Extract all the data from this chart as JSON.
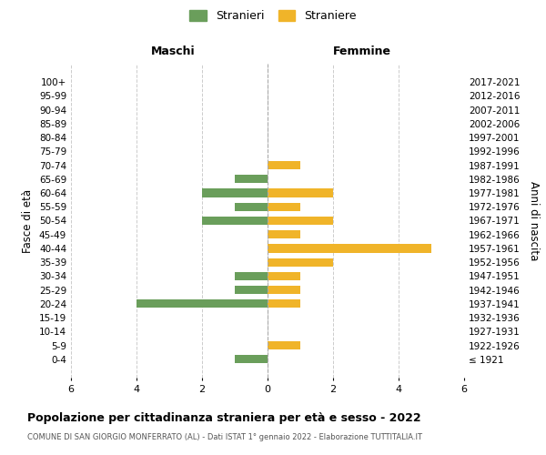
{
  "age_groups": [
    "100+",
    "95-99",
    "90-94",
    "85-89",
    "80-84",
    "75-79",
    "70-74",
    "65-69",
    "60-64",
    "55-59",
    "50-54",
    "45-49",
    "40-44",
    "35-39",
    "30-34",
    "25-29",
    "20-24",
    "15-19",
    "10-14",
    "5-9",
    "0-4"
  ],
  "birth_years": [
    "≤ 1921",
    "1922-1926",
    "1927-1931",
    "1932-1936",
    "1937-1941",
    "1942-1946",
    "1947-1951",
    "1952-1956",
    "1957-1961",
    "1962-1966",
    "1967-1971",
    "1972-1976",
    "1977-1981",
    "1982-1986",
    "1987-1991",
    "1992-1996",
    "1997-2001",
    "2002-2006",
    "2007-2011",
    "2012-2016",
    "2017-2021"
  ],
  "males": [
    0,
    0,
    0,
    0,
    0,
    0,
    0,
    1,
    2,
    1,
    2,
    0,
    0,
    0,
    1,
    1,
    4,
    0,
    0,
    0,
    1
  ],
  "females": [
    0,
    0,
    0,
    0,
    0,
    0,
    1,
    0,
    2,
    1,
    2,
    1,
    5,
    2,
    1,
    1,
    1,
    0,
    0,
    1,
    0
  ],
  "male_color": "#6a9e5b",
  "female_color": "#f0b429",
  "male_label": "Stranieri",
  "female_label": "Straniere",
  "xlim": 6,
  "title": "Popolazione per cittadinanza straniera per età e sesso - 2022",
  "subtitle": "COMUNE DI SAN GIORGIO MONFERRATO (AL) - Dati ISTAT 1° gennaio 2022 - Elaborazione TUTTITALIA.IT",
  "left_header": "Maschi",
  "right_header": "Femmine",
  "left_yaxis_label": "Fasce di età",
  "right_yaxis_label": "Anni di nascita",
  "bg_color": "#ffffff",
  "grid_color": "#cccccc"
}
